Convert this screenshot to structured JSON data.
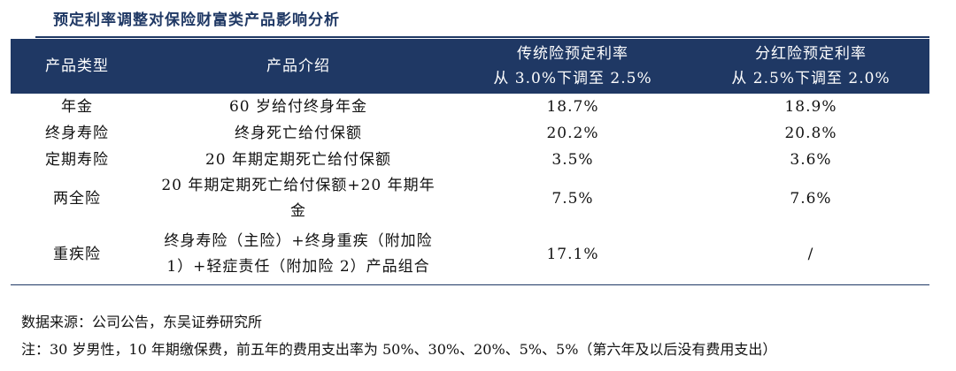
{
  "title": "预定利率调整对保险财富类产品影响分析",
  "table": {
    "headers": {
      "type": "产品类型",
      "intro": "产品介绍",
      "traditional_line1": "传统险预定利率",
      "traditional_line2": "从 3.0%下调至 2.5%",
      "dividend_line1": "分红险预定利率",
      "dividend_line2": "从 2.5%下调至 2.0%"
    },
    "rows": [
      {
        "type": "年金",
        "intro": [
          "60 岁给付终身年金"
        ],
        "traditional": "18.7%",
        "dividend": "18.9%"
      },
      {
        "type": "终身寿险",
        "intro": [
          "终身死亡给付保额"
        ],
        "traditional": "20.2%",
        "dividend": "20.8%"
      },
      {
        "type": "定期寿险",
        "intro": [
          "20 年期定期死亡给付保额"
        ],
        "traditional": "3.5%",
        "dividend": "3.6%"
      },
      {
        "type": "两全险",
        "intro": [
          "20 年期定期死亡给付保额+20 年期年",
          "金"
        ],
        "traditional": "7.5%",
        "dividend": "7.6%"
      },
      {
        "type": "重疾险",
        "intro": [
          "终身寿险（主险）+终身重疾（附加险",
          "1）+轻症责任（附加险 2）产品组合"
        ],
        "traditional": "17.1%",
        "dividend": "/"
      }
    ]
  },
  "notes": {
    "source": "数据来源：公司公告，东吴证券研究所",
    "note": "注：30 岁男性，10 年期缴保费，前五年的费用支出率为 50%、30%、20%、5%、5%（第六年及以后没有费用支出）"
  }
}
